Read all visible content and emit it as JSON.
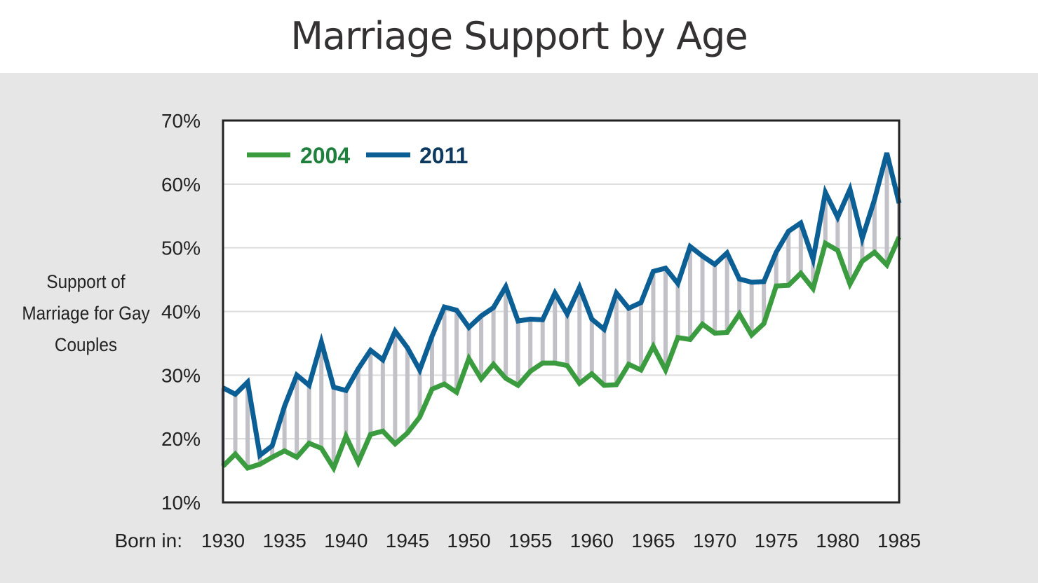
{
  "chart_data": {
    "type": "line",
    "title": "Marriage Support by Age",
    "ylabel": "Support of Marriage for Gay Couples",
    "xlabel": "Born in:",
    "xlim": [
      1930,
      1985
    ],
    "ylim": [
      10,
      70
    ],
    "x_ticks": [
      "1930",
      "1935",
      "1940",
      "1945",
      "1950",
      "1955",
      "1960",
      "1965",
      "1970",
      "1975",
      "1980",
      "1985"
    ],
    "y_ticks": [
      "10%",
      "20%",
      "30%",
      "40%",
      "50%",
      "60%",
      "70%"
    ],
    "grid": "horizontal",
    "legend_placement": "top-left",
    "gap_fill": "vertical gray bars between series",
    "colors": {
      "2004": "#3a9c3f",
      "2011": "#0b5f95",
      "gap": "#c2c1c7",
      "background": "#e6e6e7"
    },
    "x": [
      1930,
      1931,
      1932,
      1933,
      1934,
      1935,
      1936,
      1937,
      1938,
      1939,
      1940,
      1941,
      1942,
      1943,
      1944,
      1945,
      1946,
      1947,
      1948,
      1949,
      1950,
      1951,
      1952,
      1953,
      1954,
      1955,
      1956,
      1957,
      1958,
      1959,
      1960,
      1961,
      1962,
      1963,
      1964,
      1965,
      1966,
      1967,
      1968,
      1969,
      1970,
      1971,
      1972,
      1973,
      1974,
      1975,
      1976,
      1977,
      1978,
      1979,
      1980,
      1981,
      1982,
      1983,
      1984,
      1985
    ],
    "series": [
      {
        "name": "2004",
        "values": [
          15.7,
          17.6,
          15.4,
          16.0,
          17.1,
          18.1,
          17.1,
          19.3,
          18.5,
          15.4,
          20.4,
          16.3,
          20.7,
          21.2,
          19.2,
          20.9,
          23.4,
          27.8,
          28.6,
          27.3,
          32.6,
          29.4,
          31.7,
          29.5,
          28.4,
          30.6,
          31.9,
          31.9,
          31.5,
          28.7,
          30.2,
          28.4,
          28.5,
          31.7,
          30.8,
          34.5,
          30.8,
          35.9,
          35.6,
          38.0,
          36.6,
          36.7,
          39.6,
          36.3,
          38.1,
          44.0,
          44.1,
          46.0,
          43.6,
          50.7,
          49.6,
          44.3,
          47.9,
          49.3,
          47.3,
          51.7
        ]
      },
      {
        "name": "2011",
        "values": [
          28.0,
          27.0,
          28.9,
          17.4,
          18.9,
          25.1,
          30.0,
          28.4,
          35.2,
          28.1,
          27.6,
          31.0,
          33.9,
          32.4,
          36.9,
          34.3,
          30.8,
          36.1,
          40.7,
          40.2,
          37.5,
          39.3,
          40.6,
          43.9,
          38.5,
          38.8,
          38.7,
          42.9,
          39.6,
          43.8,
          38.8,
          37.2,
          42.9,
          40.5,
          41.4,
          46.3,
          46.8,
          44.4,
          50.2,
          48.7,
          47.4,
          49.2,
          45.1,
          44.6,
          44.7,
          49.3,
          52.6,
          53.9,
          48.2,
          58.7,
          54.8,
          59.2,
          51.5,
          57.6,
          64.9,
          57.0
        ]
      }
    ]
  }
}
